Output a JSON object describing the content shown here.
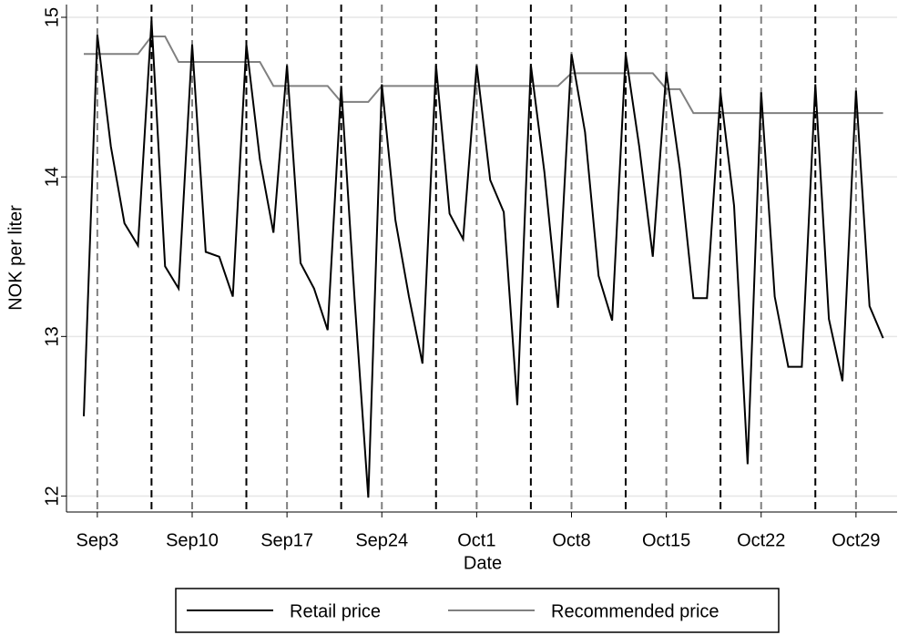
{
  "chart_data": {
    "type": "line",
    "x_label": "Date",
    "y_label": "NOK per liter",
    "categories": [
      null,
      "Sep3",
      null,
      null,
      null,
      null,
      null,
      null,
      "Sep10",
      null,
      null,
      null,
      null,
      null,
      null,
      "Sep17",
      null,
      null,
      null,
      null,
      null,
      null,
      "Sep24",
      null,
      null,
      null,
      null,
      null,
      null,
      "Oct1",
      null,
      null,
      null,
      null,
      null,
      null,
      "Oct8",
      null,
      null,
      null,
      null,
      null,
      null,
      "Oct15",
      null,
      null,
      null,
      null,
      null,
      null,
      "Oct22",
      null,
      null,
      null,
      null,
      null,
      null,
      "Oct29",
      null,
      null
    ],
    "series": [
      {
        "name": "Retail price",
        "color": "#000000",
        "values": [
          12.5,
          14.89,
          14.19,
          13.71,
          13.57,
          14.98,
          13.44,
          13.3,
          14.83,
          13.53,
          13.5,
          13.25,
          14.83,
          14.11,
          13.65,
          14.7,
          13.46,
          13.3,
          13.04,
          14.57,
          13.22,
          11.99,
          14.58,
          13.73,
          13.25,
          12.83,
          14.7,
          13.77,
          13.61,
          14.7,
          13.98,
          13.78,
          12.57,
          14.7,
          14.03,
          13.18,
          14.77,
          14.28,
          13.38,
          13.1,
          14.77,
          14.19,
          13.5,
          14.66,
          14.05,
          13.24,
          13.24,
          14.53,
          13.82,
          12.2,
          14.53,
          13.25,
          12.81,
          12.81,
          14.58,
          13.11,
          12.72,
          14.54,
          13.19,
          12.99
        ]
      },
      {
        "name": "Recommended price",
        "color": "#808080",
        "values": [
          14.77,
          14.77,
          14.77,
          14.77,
          14.77,
          14.88,
          14.88,
          14.72,
          14.72,
          14.72,
          14.72,
          14.72,
          14.72,
          14.72,
          14.57,
          14.57,
          14.57,
          14.57,
          14.57,
          14.47,
          14.47,
          14.47,
          14.57,
          14.57,
          14.57,
          14.57,
          14.57,
          14.57,
          14.57,
          14.57,
          14.57,
          14.57,
          14.57,
          14.57,
          14.57,
          14.57,
          14.65,
          14.65,
          14.65,
          14.65,
          14.65,
          14.65,
          14.65,
          14.55,
          14.55,
          14.4,
          14.4,
          14.4,
          14.4,
          14.4,
          14.4,
          14.4,
          14.4,
          14.4,
          14.4,
          14.4,
          14.4,
          14.4,
          14.4,
          14.4
        ]
      }
    ],
    "ylim": [
      11.9,
      15.08
    ],
    "yticks": [
      12,
      13,
      14,
      15
    ],
    "grid": true,
    "x_tick_lines": {
      "color": "#808080",
      "dashed": true
    },
    "marker_lines": {
      "color": "#000000",
      "dashed": true,
      "at": [
        5,
        12,
        19,
        26,
        33,
        40,
        47,
        54
      ]
    },
    "legend": "bottom"
  }
}
